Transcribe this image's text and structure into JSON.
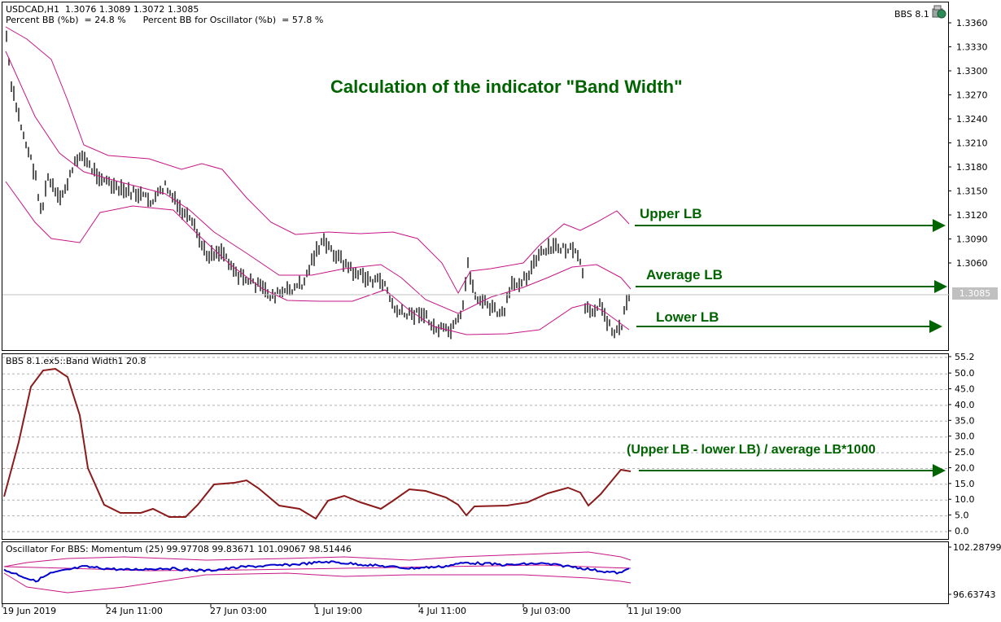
{
  "main": {
    "symbol_line": "USDCAD,H1  1.3076 1.3089 1.3072 1.3085",
    "indicator_line": "Percent BB (%b)  = 24.8 %      Percent BB for Oscillator (%b)  = 57.8 %",
    "ea_label": "BBS 8.1",
    "title": "Calculation of the indicator \"Band Width\"",
    "current_price": "1.3085",
    "price_ticks": [
      "1.3360",
      "1.3330",
      "1.3300",
      "1.3270",
      "1.3240",
      "1.3210",
      "1.3180",
      "1.3150",
      "1.3120",
      "1.3090",
      "1.3060"
    ],
    "annotations": {
      "upper": "Upper LB",
      "average": "Average LB",
      "lower": "Lower LB"
    }
  },
  "bandwidth": {
    "header": "BBS 8.1.ex5::Band Width1 20.8",
    "formula": "(Upper LB - lower LB) / average LB*1000",
    "ticks": [
      "55.2",
      "50.0",
      "45.0",
      "40.0",
      "35.0",
      "30.0",
      "25.0",
      "20.0",
      "15.0",
      "10.0",
      "5.0",
      "0.0"
    ]
  },
  "oscillator": {
    "header": "Oscillator For BBS: Momentum (25) 99.97708 99.83671 101.09067 98.51446",
    "ticks": [
      "102.28799",
      "96.63743"
    ]
  },
  "time_axis": [
    "19 Jun 2019",
    "24 Jun 11:00",
    "27 Jun 03:00",
    "1 Jul 19:00",
    "4 Jul 11:00",
    "9 Jul 03:00",
    "11 Jul 19:00"
  ],
  "colors": {
    "annotation": "#006400",
    "band": "#c71585",
    "bandwidth_line": "#8b1a1a",
    "momentum_line": "#0000cd",
    "candles": "#000000"
  }
}
